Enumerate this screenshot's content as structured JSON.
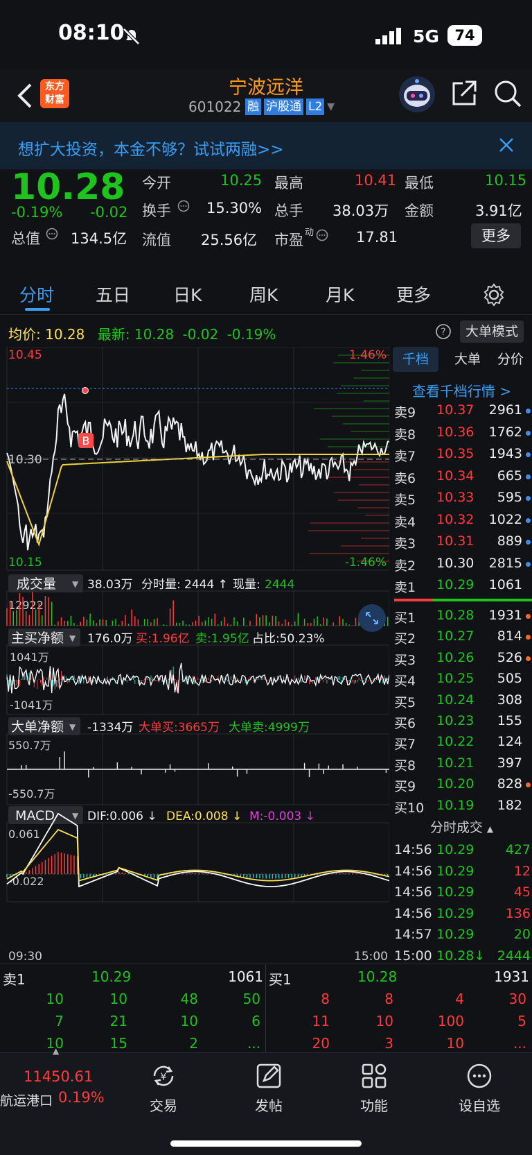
{
  "status": {
    "time": "08:10",
    "network": "5G",
    "battery": "74"
  },
  "header": {
    "logo": "东方\n财富",
    "name": "宁波远洋",
    "code": "601022",
    "tags": [
      "融",
      "沪股通",
      "L2"
    ]
  },
  "banner": {
    "text": "想扩大投资，本金不够？试试两融>>"
  },
  "quote": {
    "price": "10.28",
    "pct": "-0.19%",
    "chg": "-0.02",
    "open_label": "今开",
    "open": "10.25",
    "high_label": "最高",
    "high": "10.41",
    "low_label": "最低",
    "low": "10.15",
    "turnover_label": "换手",
    "turnover": "15.30%",
    "vol_label": "总手",
    "vol": "38.03万",
    "amt_label": "金额",
    "amt": "3.91亿",
    "mcap_label": "总值",
    "mcap": "134.5亿",
    "float_label": "流值",
    "float": "25.56亿",
    "pe_label": "市盈",
    "pe_sup": "动",
    "pe": "17.81",
    "more": "更多"
  },
  "tabs": [
    "分时",
    "五日",
    "日K",
    "周K",
    "月K",
    "更多"
  ],
  "tabs_active": "分时",
  "avg": {
    "label": "均价:",
    "value": "10.28",
    "latest_label": "最新:",
    "latest": "10.28",
    "chg": "-0.02",
    "pct": "-0.19%",
    "mode": "大单模式"
  },
  "main_chart": {
    "high_price": "10.45",
    "mid_price": "10.30",
    "low_price": "10.15",
    "pct_up": "1.46%",
    "pct_down": "-1.46%",
    "marker": "B"
  },
  "vol_panel": {
    "label": "成交量",
    "total": "38.03万",
    "fs_label": "分时量:",
    "fs_value": "2444 ↑",
    "now_label": "现量:",
    "now": "2444",
    "max": "12922"
  },
  "net_panel": {
    "label": "主买净额",
    "value": "176.0万",
    "buy": "买:1.96亿",
    "sell": "卖:1.95亿",
    "ratio": "占比:50.23%",
    "top": "1041万",
    "bottom": "-1041万"
  },
  "big_panel": {
    "label": "大单净额",
    "value": "-1334万",
    "buy": "大单买:3665万",
    "sell": "大单卖:4999万",
    "top": "550.7万",
    "bottom": "-550.7万"
  },
  "macd_panel": {
    "label": "MACD",
    "dif": "DIF:0.006 ↓",
    "dea": "DEA:0.008 ↓",
    "m": "M:-0.003 ↓",
    "top": "0.061",
    "bottom": "-0.022",
    "start": "09:30",
    "end": "15:00"
  },
  "book_tabs": [
    "千档",
    "大单",
    "分价"
  ],
  "book_link": "查看千档行情 >",
  "asks": [
    {
      "l": "卖9",
      "p": "10.37",
      "v": "2961",
      "c": "red"
    },
    {
      "l": "卖8",
      "p": "10.36",
      "v": "1762",
      "c": "red"
    },
    {
      "l": "卖7",
      "p": "10.35",
      "v": "1943",
      "c": "red"
    },
    {
      "l": "卖6",
      "p": "10.34",
      "v": "665",
      "c": "red"
    },
    {
      "l": "卖5",
      "p": "10.33",
      "v": "595",
      "c": "red"
    },
    {
      "l": "卖4",
      "p": "10.32",
      "v": "1022",
      "c": "red"
    },
    {
      "l": "卖3",
      "p": "10.31",
      "v": "889",
      "c": "red"
    },
    {
      "l": "卖2",
      "p": "10.30",
      "v": "2815",
      "c": "white"
    },
    {
      "l": "卖1",
      "p": "10.29",
      "v": "1061",
      "c": "green"
    }
  ],
  "bids": [
    {
      "l": "买1",
      "p": "10.28",
      "v": "1931"
    },
    {
      "l": "买2",
      "p": "10.27",
      "v": "814"
    },
    {
      "l": "买3",
      "p": "10.26",
      "v": "526"
    },
    {
      "l": "买4",
      "p": "10.25",
      "v": "505"
    },
    {
      "l": "买5",
      "p": "10.24",
      "v": "308"
    },
    {
      "l": "买6",
      "p": "10.23",
      "v": "155"
    },
    {
      "l": "买7",
      "p": "10.22",
      "v": "124"
    },
    {
      "l": "买8",
      "p": "10.21",
      "v": "397"
    },
    {
      "l": "买9",
      "p": "10.20",
      "v": "828"
    },
    {
      "l": "买10",
      "p": "10.19",
      "v": "182"
    }
  ],
  "ticks_title": "分时成交",
  "ticks": [
    {
      "t": "14:56",
      "p": "10.29",
      "v": "427",
      "c": "green"
    },
    {
      "t": "14:56",
      "p": "10.29",
      "v": "12",
      "c": "red"
    },
    {
      "t": "14:56",
      "p": "10.29",
      "v": "45",
      "c": "red"
    },
    {
      "t": "14:56",
      "p": "10.29",
      "v": "136",
      "c": "red"
    },
    {
      "t": "14:57",
      "p": "10.29",
      "v": "20",
      "c": "green"
    },
    {
      "t": "15:00",
      "p": "10.28↓",
      "v": "2444",
      "c": "green"
    }
  ],
  "depth": {
    "sell_label": "卖1",
    "sell_price": "10.29",
    "sell_vol": "1061",
    "buy_label": "买1",
    "buy_price": "10.28",
    "buy_vol": "1931",
    "sell_rows": [
      [
        "10",
        "10",
        "48",
        "50"
      ],
      [
        "7",
        "21",
        "10",
        "6"
      ],
      [
        "10",
        "15",
        "2",
        "..."
      ]
    ],
    "buy_rows": [
      [
        "8",
        "8",
        "4",
        "30"
      ],
      [
        "11",
        "10",
        "100",
        "5"
      ],
      [
        "20",
        "3",
        "10",
        "..."
      ]
    ]
  },
  "nav": {
    "index_value": "11450.61",
    "index_name": "航运港口",
    "index_pct": "0.19%",
    "items": [
      "交易",
      "发帖",
      "功能",
      "设自选"
    ]
  },
  "colors": {
    "red": "#ff3b3b",
    "green": "#1ec31e",
    "yellow": "#ffe14d",
    "blue": "#4aa3ff",
    "magenta": "#e040e0",
    "bg": "#111216"
  }
}
